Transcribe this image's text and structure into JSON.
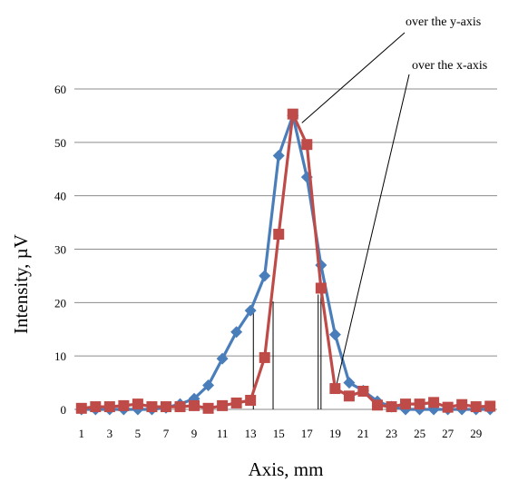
{
  "chart_data": {
    "type": "line",
    "title": "",
    "xlabel": "Axis, mm",
    "ylabel": "Intensity, µV",
    "xlim": [
      0.5,
      30.5
    ],
    "ylim": [
      0,
      60
    ],
    "x_tick_labels": [
      "1",
      "3",
      "5",
      "7",
      "9",
      "11",
      "13",
      "15",
      "17",
      "19",
      "21",
      "23",
      "25",
      "27",
      "29"
    ],
    "y_ticks": [
      0,
      10,
      20,
      30,
      40,
      50,
      60
    ],
    "grid": "horizontal",
    "legend": "none",
    "x": [
      1,
      2,
      3,
      4,
      5,
      6,
      7,
      8,
      9,
      10,
      11,
      12,
      13,
      14,
      15,
      16,
      17,
      18,
      19,
      20,
      21,
      22,
      23,
      24,
      25,
      26,
      27,
      28,
      29,
      30
    ],
    "series": [
      {
        "name": "over the y-axis",
        "color": "#4a7ebb",
        "marker": "diamond",
        "values": [
          0,
          0,
          0,
          0,
          0,
          0,
          0.3,
          1,
          2,
          4.5,
          9.5,
          14.5,
          18.5,
          25,
          47.5,
          55,
          43.5,
          27,
          14,
          5,
          3.5,
          1.5,
          0.5,
          0,
          0,
          0,
          0,
          0,
          0,
          0
        ]
      },
      {
        "name": "over the x-axis",
        "color": "#be4b48",
        "marker": "square",
        "values": [
          0.2,
          0.5,
          0.5,
          0.7,
          1,
          0.5,
          0.5,
          0.5,
          0.7,
          0.2,
          0.7,
          1.2,
          1.7,
          9.7,
          32.8,
          55.3,
          49.6,
          22.7,
          3.9,
          2.5,
          3.4,
          0.8,
          0.5,
          1,
          1,
          1.3,
          0.4,
          0.9,
          0.5,
          0.6
        ]
      }
    ],
    "annotations": [
      {
        "text": "over the y-axis",
        "target_series": 0,
        "target_x": 16
      },
      {
        "text": "over the x-axis",
        "target_series": 1,
        "target_x": 19
      }
    ],
    "markers": [
      {
        "x": 13.2,
        "y": 18.5
      },
      {
        "x": 14.6,
        "y": 20.2
      },
      {
        "x": 17.8,
        "y": 21.5
      },
      {
        "x": 18.0,
        "y": 22.7
      }
    ]
  }
}
